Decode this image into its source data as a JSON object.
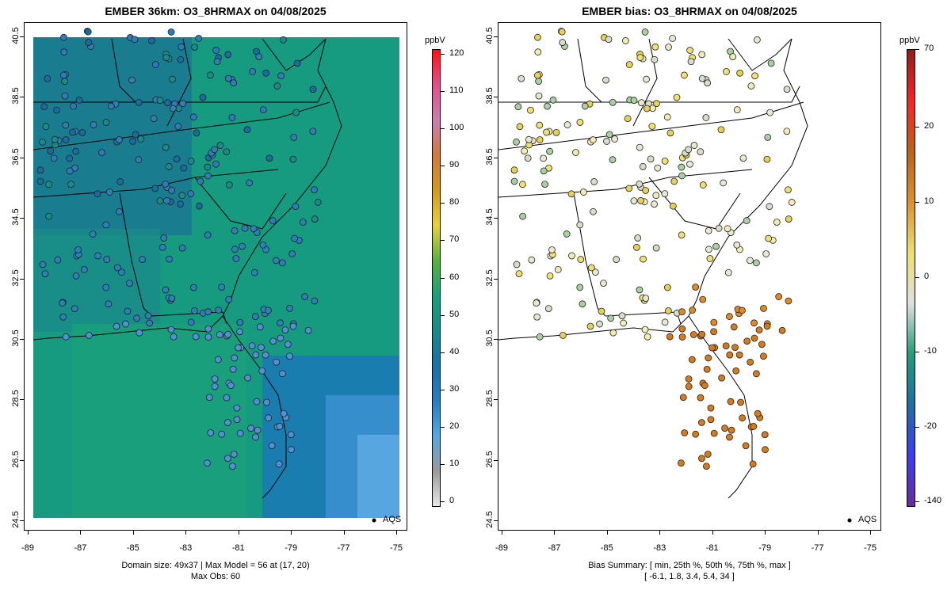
{
  "left_panel": {
    "title": "EMBER 36km: O3_8HRMAX on 04/08/2025",
    "colorbar": {
      "unit": "ppbV",
      "ticks": [
        "120",
        "110",
        "100",
        "90",
        "80",
        "70",
        "60",
        "50",
        "40",
        "30",
        "20",
        "10",
        "0"
      ],
      "colors": [
        "#e8e8e8",
        "#9a9a9a",
        "#55a8e0",
        "#2a7cc0",
        "#1a70a8",
        "#1a8a8a",
        "#1aa07a",
        "#5ab040",
        "#e8d040",
        "#d09a20",
        "#d06a50",
        "#d080b0",
        "#ff2020"
      ]
    },
    "legend": "AQS",
    "summary_line1": "Domain size: 49x37 | Max Model = 56 at (17, 20)",
    "summary_line2": "Max Obs: 60"
  },
  "right_panel": {
    "title": "EMBER bias: O3_8HRMAX on 04/08/2025",
    "colorbar": {
      "unit": "ppbV",
      "ticks": [
        "70",
        "20",
        "10",
        "0",
        "-10",
        "-20",
        "-140"
      ],
      "colors": [
        "#6a2aa0",
        "#3a3aff",
        "#1a70a8",
        "#1aa07a",
        "#e0e0e0",
        "#f0e060",
        "#e09020",
        "#c06010",
        "#ff2020",
        "#9a2020"
      ]
    },
    "legend": "AQS",
    "summary_line1": "Bias Summary: [ min, 25th %, 50th %, 75th %, max ]",
    "summary_line2": "[ -6.1,   1.8,   3.4,   5.4,   34 ]"
  },
  "axes": {
    "x_ticks": [
      "-89",
      "-87",
      "-85",
      "-83",
      "-81",
      "-79",
      "-77",
      "-75"
    ],
    "y_ticks": [
      "40.5",
      "38.5",
      "36.5",
      "34.5",
      "32.5",
      "30.5",
      "28.5",
      "26.5",
      "24.5"
    ]
  }
}
